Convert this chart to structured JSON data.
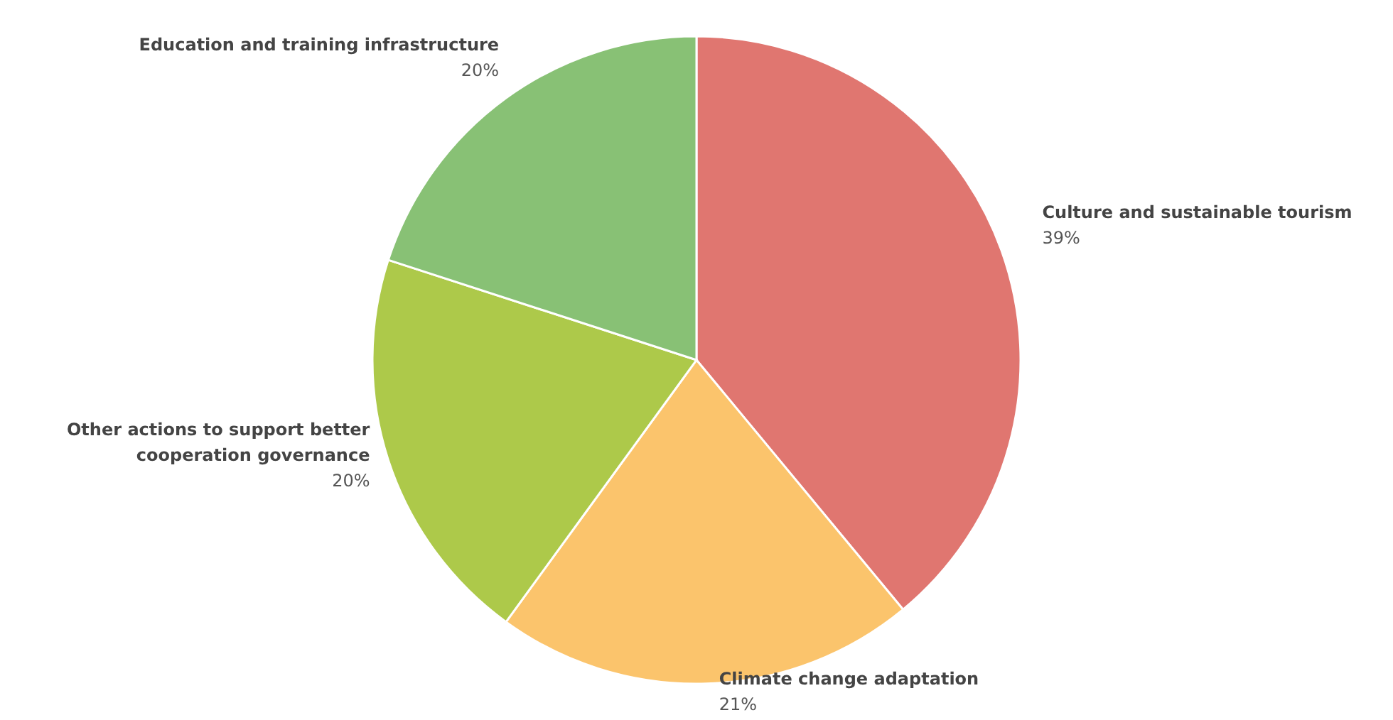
{
  "chart_data": {
    "type": "pie",
    "categories": [
      "Culture and sustainable tourism",
      "Climate change adaptation",
      "Other actions to support better cooperation governance",
      "Education and training infrastructure"
    ],
    "values": [
      39,
      21,
      20,
      20
    ],
    "value_labels": [
      "39%",
      "21%",
      "20%",
      "20%"
    ],
    "colors": [
      "#e07670",
      "#fbc46c",
      "#adc94a",
      "#88c175"
    ]
  }
}
